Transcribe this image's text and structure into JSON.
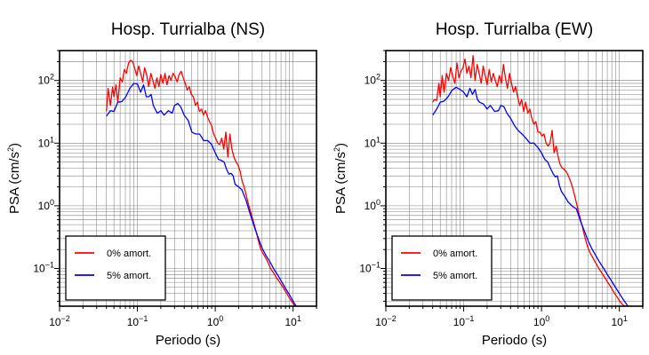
{
  "chart_data": [
    {
      "type": "line",
      "title": "Hosp. Turrialba (NS)",
      "xlabel": "Periodo (s)",
      "ylabel_base": "PSA (cm/s",
      "ylabel_sup": "2",
      "ylabel_tail": ")",
      "xscale": "log",
      "yscale": "log",
      "xlim": [
        0.01,
        20
      ],
      "ylim": [
        0.025,
        300
      ],
      "grid": true,
      "legend_position": "bottom-left",
      "x_ticks": [
        {
          "base": "10",
          "exp": "−2",
          "value": 0.01
        },
        {
          "base": "10",
          "exp": "−1",
          "value": 0.1
        },
        {
          "base": "10",
          "exp": "0",
          "value": 1
        },
        {
          "base": "10",
          "exp": "1",
          "value": 10
        }
      ],
      "y_ticks": [
        {
          "base": "10",
          "exp": "−1",
          "value": 0.1
        },
        {
          "base": "10",
          "exp": "0",
          "value": 1
        },
        {
          "base": "10",
          "exp": "1",
          "value": 10
        },
        {
          "base": "10",
          "exp": "2",
          "value": 100
        }
      ],
      "series": [
        {
          "name": "0% amort.",
          "color": "#ff0000",
          "x": [
            0.04,
            0.042,
            0.045,
            0.048,
            0.05,
            0.053,
            0.056,
            0.06,
            0.064,
            0.068,
            0.072,
            0.077,
            0.082,
            0.087,
            0.092,
            0.098,
            0.104,
            0.11,
            0.117,
            0.124,
            0.132,
            0.14,
            0.149,
            0.158,
            0.168,
            0.178,
            0.189,
            0.2,
            0.213,
            0.226,
            0.24,
            0.255,
            0.27,
            0.287,
            0.305,
            0.324,
            0.344,
            0.365,
            0.388,
            0.412,
            0.437,
            0.464,
            0.493,
            0.524,
            0.556,
            0.59,
            0.627,
            0.666,
            0.707,
            0.75,
            0.797,
            0.846,
            0.899,
            0.954,
            1.013,
            1.076,
            1.143,
            1.213,
            1.288,
            1.368,
            1.453,
            1.543,
            1.638,
            1.74,
            1.847,
            1.962,
            2.083,
            2.212,
            2.349,
            2.495,
            2.649,
            2.813,
            2.988,
            3.173,
            3.369,
            3.578,
            3.8,
            4.035,
            4.285,
            4.55,
            4.832,
            5.132,
            5.449,
            5.787,
            6.146,
            6.526,
            6.93,
            7.36,
            7.816,
            8.3,
            8.814,
            9.36,
            9.94,
            10.56,
            11.2
          ],
          "y": [
            32,
            75,
            40,
            78,
            55,
            85,
            45,
            110,
            95,
            150,
            130,
            190,
            210,
            200,
            160,
            120,
            170,
            130,
            95,
            160,
            120,
            80,
            130,
            100,
            75,
            110,
            80,
            125,
            90,
            130,
            85,
            120,
            100,
            130,
            115,
            95,
            125,
            140,
            110,
            90,
            70,
            80,
            60,
            55,
            40,
            45,
            32,
            35,
            28,
            33,
            26,
            22,
            19,
            14,
            12,
            10,
            9.5,
            12,
            8,
            15,
            6,
            14,
            8,
            6,
            5,
            4.5,
            3.6,
            2.5,
            2,
            1.5,
            1.1,
            0.85,
            0.65,
            0.5,
            0.38,
            0.28,
            0.21,
            0.18,
            0.16,
            0.14,
            0.12,
            0.1,
            0.09,
            0.08,
            0.07,
            0.064,
            0.057,
            0.051,
            0.045,
            0.04,
            0.035,
            0.031,
            0.028,
            0.025,
            0.023
          ]
        },
        {
          "name": "5% amort.",
          "color": "#0000ff",
          "x": [
            0.04,
            0.045,
            0.05,
            0.056,
            0.063,
            0.071,
            0.08,
            0.09,
            0.1,
            0.11,
            0.12,
            0.13,
            0.14,
            0.15,
            0.16,
            0.18,
            0.2,
            0.22,
            0.25,
            0.28,
            0.3,
            0.33,
            0.36,
            0.4,
            0.45,
            0.5,
            0.56,
            0.63,
            0.71,
            0.8,
            0.9,
            1.0,
            1.1,
            1.2,
            1.3,
            1.4,
            1.5,
            1.6,
            1.7,
            1.8,
            2.0,
            2.2,
            2.5,
            2.8,
            3.2,
            3.6,
            4.0,
            4.5,
            5.0,
            5.6,
            6.3,
            7.1,
            8.0,
            9.0,
            10.0,
            11.2
          ],
          "y": [
            27,
            33,
            32,
            45,
            46,
            55,
            75,
            90,
            88,
            65,
            85,
            55,
            55,
            60,
            40,
            30,
            33,
            28,
            33,
            30,
            40,
            43,
            38,
            28,
            23,
            15,
            14,
            14,
            11,
            11,
            9.5,
            7,
            5.5,
            5.3,
            5,
            3.8,
            3.2,
            3.3,
            3,
            2.2,
            2,
            1.8,
            1.2,
            0.75,
            0.45,
            0.3,
            0.21,
            0.16,
            0.13,
            0.1,
            0.08,
            0.062,
            0.048,
            0.038,
            0.03,
            0.024
          ]
        }
      ]
    },
    {
      "type": "line",
      "title": "Hosp. Turrialba (EW)",
      "xlabel": "Periodo (s)",
      "ylabel_base": "PSA (cm/s",
      "ylabel_sup": "2",
      "ylabel_tail": ")",
      "xscale": "log",
      "yscale": "log",
      "xlim": [
        0.01,
        20
      ],
      "ylim": [
        0.025,
        300
      ],
      "grid": true,
      "legend_position": "bottom-left",
      "x_ticks": [
        {
          "base": "10",
          "exp": "−2",
          "value": 0.01
        },
        {
          "base": "10",
          "exp": "−1",
          "value": 0.1
        },
        {
          "base": "10",
          "exp": "0",
          "value": 1
        },
        {
          "base": "10",
          "exp": "1",
          "value": 10
        }
      ],
      "y_ticks": [
        {
          "base": "10",
          "exp": "−1",
          "value": 0.1
        },
        {
          "base": "10",
          "exp": "0",
          "value": 1
        },
        {
          "base": "10",
          "exp": "1",
          "value": 10
        },
        {
          "base": "10",
          "exp": "2",
          "value": 100
        }
      ],
      "series": [
        {
          "name": "0% amort.",
          "color": "#ff0000",
          "x": [
            0.04,
            0.042,
            0.045,
            0.048,
            0.05,
            0.053,
            0.056,
            0.06,
            0.064,
            0.068,
            0.072,
            0.077,
            0.082,
            0.087,
            0.092,
            0.098,
            0.104,
            0.11,
            0.117,
            0.124,
            0.132,
            0.14,
            0.149,
            0.158,
            0.168,
            0.178,
            0.189,
            0.2,
            0.213,
            0.226,
            0.24,
            0.255,
            0.27,
            0.287,
            0.305,
            0.324,
            0.344,
            0.365,
            0.388,
            0.412,
            0.437,
            0.464,
            0.493,
            0.524,
            0.556,
            0.59,
            0.627,
            0.666,
            0.707,
            0.75,
            0.797,
            0.846,
            0.899,
            0.954,
            1.013,
            1.076,
            1.143,
            1.213,
            1.288,
            1.368,
            1.453,
            1.543,
            1.638,
            1.74,
            1.847,
            1.962,
            2.083,
            2.212,
            2.349,
            2.495,
            2.649,
            2.813,
            2.988,
            3.173,
            3.369,
            3.578,
            3.8,
            4.035,
            4.285,
            4.55,
            4.832,
            5.132,
            5.449,
            5.787,
            6.146,
            6.526,
            6.93,
            7.36,
            7.816,
            8.3,
            8.814,
            9.36,
            9.94,
            10.56,
            11.2,
            11.9,
            12.7,
            13.5,
            14.5
          ],
          "y": [
            45,
            50,
            48,
            90,
            55,
            120,
            65,
            130,
            100,
            160,
            120,
            90,
            190,
            110,
            140,
            160,
            220,
            130,
            170,
            110,
            250,
            100,
            180,
            130,
            90,
            170,
            120,
            85,
            150,
            95,
            130,
            100,
            80,
            120,
            90,
            180,
            110,
            75,
            130,
            90,
            65,
            80,
            55,
            40,
            50,
            32,
            45,
            30,
            35,
            25,
            20,
            22,
            15,
            15,
            13,
            14,
            10,
            9,
            10,
            16,
            7,
            9,
            6,
            4.5,
            4,
            3.8,
            3.5,
            3,
            2.5,
            2,
            1.5,
            1.1,
            0.8,
            0.6,
            0.45,
            0.33,
            0.25,
            0.2,
            0.17,
            0.15,
            0.13,
            0.115,
            0.1,
            0.09,
            0.08,
            0.071,
            0.063,
            0.056,
            0.05,
            0.044,
            0.039,
            0.035,
            0.031,
            0.028,
            0.026,
            0.025,
            0.025,
            0.025,
            0.025
          ]
        },
        {
          "name": "5% amort.",
          "color": "#0000ff",
          "x": [
            0.04,
            0.045,
            0.05,
            0.056,
            0.063,
            0.071,
            0.08,
            0.09,
            0.1,
            0.11,
            0.12,
            0.13,
            0.14,
            0.15,
            0.16,
            0.18,
            0.2,
            0.22,
            0.25,
            0.28,
            0.3,
            0.33,
            0.36,
            0.4,
            0.45,
            0.5,
            0.56,
            0.63,
            0.71,
            0.8,
            0.9,
            1.0,
            1.1,
            1.2,
            1.3,
            1.4,
            1.5,
            1.6,
            1.7,
            1.8,
            2.0,
            2.2,
            2.5,
            2.8,
            3.2,
            3.6,
            4.0,
            4.5,
            5.0,
            5.6,
            6.3,
            7.1,
            8.0,
            9.0,
            10.0,
            11.2,
            12.6,
            14.5
          ],
          "y": [
            28,
            35,
            45,
            47,
            55,
            70,
            78,
            72,
            65,
            55,
            75,
            60,
            72,
            50,
            45,
            42,
            35,
            40,
            32,
            33,
            40,
            38,
            30,
            25,
            19,
            16,
            14,
            12,
            10,
            10,
            8.5,
            7,
            5.5,
            5,
            4,
            3.3,
            2.9,
            3,
            2.1,
            1.7,
            1.4,
            1.15,
            0.98,
            0.9,
            0.55,
            0.38,
            0.27,
            0.2,
            0.16,
            0.125,
            0.1,
            0.078,
            0.062,
            0.049,
            0.04,
            0.032,
            0.026,
            0.02
          ]
        }
      ]
    }
  ]
}
